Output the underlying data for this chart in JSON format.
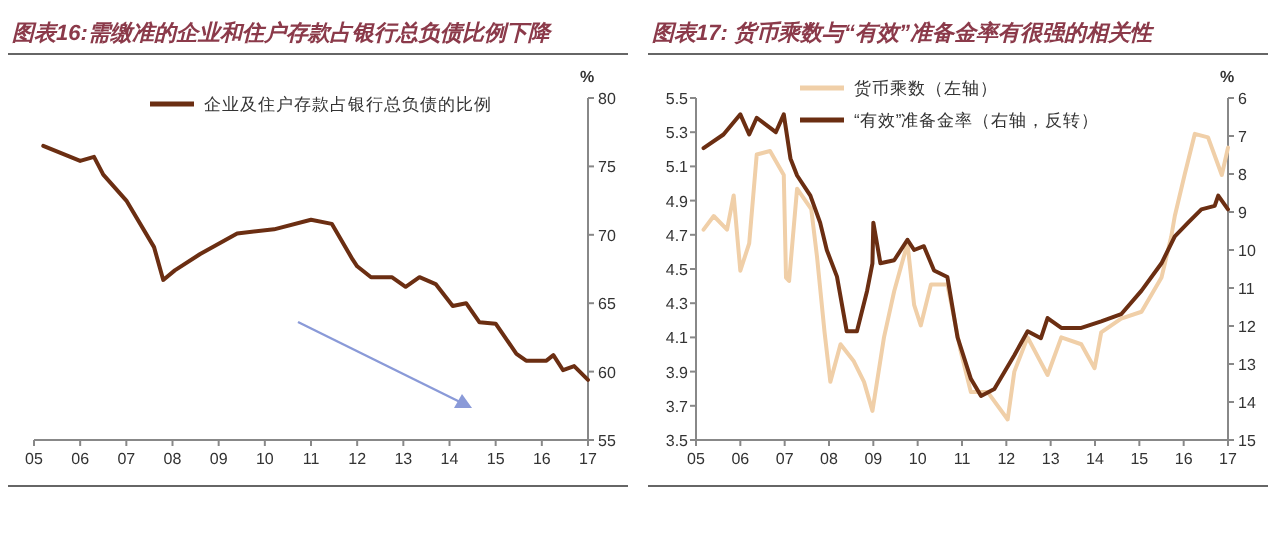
{
  "chart_data": [
    {
      "type": "line",
      "title": "图表16:需缴准的企业和住户存款占银行总负债比例下降",
      "ylabel": "%",
      "legend": "top",
      "xlim": [
        2005,
        2017
      ],
      "xticks": [
        {
          "value": 2005,
          "label": "05"
        },
        {
          "value": 2006,
          "label": "06"
        },
        {
          "value": 2007,
          "label": "07"
        },
        {
          "value": 2008,
          "label": "08"
        },
        {
          "value": 2009,
          "label": "09"
        },
        {
          "value": 2010,
          "label": "10"
        },
        {
          "value": 2011,
          "label": "11"
        },
        {
          "value": 2012,
          "label": "12"
        },
        {
          "value": 2013,
          "label": "13"
        },
        {
          "value": 2014,
          "label": "14"
        },
        {
          "value": 2015,
          "label": "15"
        },
        {
          "value": 2016,
          "label": "16"
        },
        {
          "value": 2017,
          "label": "17"
        }
      ],
      "ylim": [
        55,
        80
      ],
      "yticks": [
        55,
        60,
        65,
        70,
        75,
        80
      ],
      "series": [
        {
          "name": "企业及住户存款占银行总负债的比例",
          "color": "#6b2e12",
          "x": [
            2005.2,
            2006.0,
            2006.3,
            2006.5,
            2007.0,
            2007.6,
            2007.8,
            2008.05,
            2008.6,
            2009.4,
            2010.2,
            2011.0,
            2011.45,
            2011.9,
            2012.0,
            2012.3,
            2012.75,
            2013.05,
            2013.35,
            2013.7,
            2014.07,
            2014.36,
            2014.65,
            2015.0,
            2015.45,
            2015.66,
            2016.1,
            2016.25,
            2016.46,
            2016.7,
            2017.0
          ],
          "values": [
            76.5,
            75.4,
            75.7,
            74.4,
            72.5,
            69.1,
            66.7,
            67.4,
            68.6,
            70.1,
            70.4,
            71.1,
            70.8,
            68.2,
            67.7,
            66.9,
            66.9,
            66.2,
            66.9,
            66.4,
            64.8,
            65.0,
            63.6,
            63.5,
            61.3,
            60.8,
            60.8,
            61.2,
            60.1,
            60.4,
            59.4
          ]
        }
      ]
    },
    {
      "type": "line",
      "title": "图表17: 货币乘数与“有效”准备金率有很强的相关性",
      "y2label": "%",
      "legend": "top",
      "xlim": [
        2005,
        2017
      ],
      "xticks": [
        {
          "value": 2005,
          "label": "05"
        },
        {
          "value": 2006,
          "label": "06"
        },
        {
          "value": 2007,
          "label": "07"
        },
        {
          "value": 2008,
          "label": "08"
        },
        {
          "value": 2009,
          "label": "09"
        },
        {
          "value": 2010,
          "label": "10"
        },
        {
          "value": 2011,
          "label": "11"
        },
        {
          "value": 2012,
          "label": "12"
        },
        {
          "value": 2013,
          "label": "13"
        },
        {
          "value": 2014,
          "label": "14"
        },
        {
          "value": 2015,
          "label": "15"
        },
        {
          "value": 2016,
          "label": "16"
        },
        {
          "value": 2017,
          "label": "17"
        }
      ],
      "ylim": [
        3.5,
        5.5
      ],
      "yticks": [
        {
          "value": 3.5,
          "label": "3.5"
        },
        {
          "value": 3.7,
          "label": "3.7"
        },
        {
          "value": 3.9,
          "label": "3.9"
        },
        {
          "value": 4.1,
          "label": "4.1"
        },
        {
          "value": 4.3,
          "label": "4.3"
        },
        {
          "value": 4.5,
          "label": "4.5"
        },
        {
          "value": 4.7,
          "label": "4.7"
        },
        {
          "value": 4.9,
          "label": "4.9"
        },
        {
          "value": 5.1,
          "label": "5.1"
        },
        {
          "value": 5.3,
          "label": "5.3"
        },
        {
          "value": 5.5,
          "label": "5.5"
        }
      ],
      "y2lim": [
        15,
        6
      ],
      "y2ticks": [
        6,
        7,
        8,
        9,
        10,
        11,
        12,
        13,
        14,
        15
      ],
      "series": [
        {
          "name": "货币乘数（左轴）",
          "color": "#f0cfa8",
          "x": [
            2005.17,
            2005.4,
            2005.7,
            2005.85,
            2006.0,
            2006.2,
            2006.37,
            2006.67,
            2006.98,
            2007.03,
            2007.1,
            2007.28,
            2007.6,
            2007.73,
            2007.9,
            2008.03,
            2008.26,
            2008.56,
            2008.79,
            2008.98,
            2009.24,
            2009.47,
            2009.77,
            2009.92,
            2010.07,
            2010.3,
            2010.67,
            2010.97,
            2011.2,
            2011.58,
            2012.03,
            2012.18,
            2012.48,
            2012.93,
            2013.24,
            2013.69,
            2013.99,
            2014.14,
            2014.59,
            2015.05,
            2015.5,
            2015.72,
            2015.8,
            2016.02,
            2016.25,
            2016.55,
            2016.86,
            2017.0
          ],
          "values": [
            4.73,
            4.81,
            4.73,
            4.93,
            4.49,
            4.65,
            5.17,
            5.19,
            5.05,
            4.45,
            4.43,
            4.97,
            4.85,
            4.57,
            4.13,
            3.84,
            4.06,
            3.96,
            3.84,
            3.67,
            4.1,
            4.37,
            4.65,
            4.29,
            4.17,
            4.41,
            4.41,
            4.02,
            3.78,
            3.78,
            3.62,
            3.9,
            4.1,
            3.88,
            4.1,
            4.06,
            3.92,
            4.13,
            4.21,
            4.25,
            4.45,
            4.69,
            4.81,
            5.05,
            5.29,
            5.27,
            5.05,
            5.21
          ]
        },
        {
          "name": "“有效”准备金率（右轴，反转）",
          "color": "#6b2e12",
          "axis": "y2",
          "x": [
            2005.17,
            2005.62,
            2006.0,
            2006.2,
            2006.37,
            2006.8,
            2006.98,
            2007.13,
            2007.28,
            2007.58,
            2007.8,
            2007.95,
            2008.18,
            2008.4,
            2008.63,
            2008.86,
            2008.98,
            2009.0,
            2009.16,
            2009.47,
            2009.77,
            2009.92,
            2010.14,
            2010.37,
            2010.67,
            2010.9,
            2011.2,
            2011.43,
            2011.73,
            2012.18,
            2012.48,
            2012.78,
            2012.93,
            2013.24,
            2013.69,
            2014.14,
            2014.59,
            2015.05,
            2015.5,
            2015.8,
            2016.1,
            2016.4,
            2016.7,
            2016.78,
            2017.0
          ],
          "values": [
            7.32,
            6.96,
            6.43,
            6.96,
            6.52,
            6.9,
            6.43,
            7.59,
            8.04,
            8.57,
            9.28,
            10.0,
            10.7,
            12.14,
            12.14,
            11.07,
            10.35,
            9.28,
            10.35,
            10.27,
            9.73,
            10.0,
            9.9,
            10.54,
            10.71,
            12.3,
            13.39,
            13.84,
            13.66,
            12.77,
            12.14,
            12.32,
            11.79,
            12.05,
            12.05,
            11.88,
            11.69,
            11.07,
            10.35,
            9.64,
            9.28,
            8.93,
            8.84,
            8.57,
            8.93
          ]
        }
      ]
    }
  ]
}
